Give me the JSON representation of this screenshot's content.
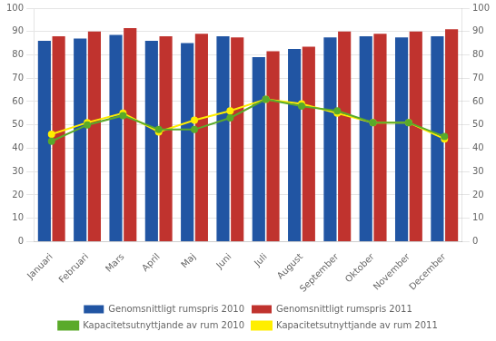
{
  "chart_data": {
    "type": "bar",
    "categories": [
      "Januari",
      "Februari",
      "Mars",
      "April",
      "Maj",
      "Juni",
      "Juli",
      "August",
      "September",
      "Oktober",
      "November",
      "December"
    ],
    "series": [
      {
        "name": "Genomsnittligt rumspris 2010",
        "type": "bar",
        "color": "#2155A3",
        "values": [
          86,
          87,
          88.5,
          86,
          85,
          88,
          79,
          82.5,
          87.5,
          88,
          87.5,
          88
        ]
      },
      {
        "name": "Genomsnittligt rumspris 2011",
        "type": "bar",
        "color": "#C0332E",
        "values": [
          88,
          90,
          91.5,
          88,
          89,
          87.5,
          81.5,
          83.5,
          90,
          89,
          90,
          91
        ]
      },
      {
        "name": "Kapacitetsutnyttjande av rum 2010",
        "type": "line",
        "axis": "y2",
        "marker": "circle",
        "color": "#5AAA2A",
        "values": [
          43,
          50,
          54,
          48,
          48,
          53,
          61,
          58,
          56,
          51,
          51,
          45
        ]
      },
      {
        "name": "Kapacitetsutnyttjande av rum 2011",
        "type": "line",
        "axis": "y2",
        "marker": "circle",
        "color": "#FFEE00",
        "values": [
          46,
          51,
          55,
          47,
          52,
          56,
          61,
          59,
          55,
          51,
          51,
          44
        ]
      }
    ],
    "ylim": [
      0,
      100
    ],
    "yticks": [
      0,
      10,
      20,
      30,
      40,
      50,
      60,
      70,
      80,
      90,
      100
    ],
    "y2lim": [
      0,
      100
    ],
    "y2ticks": [
      0,
      10,
      20,
      30,
      40,
      50,
      60,
      70,
      80,
      90,
      100
    ],
    "grid": true,
    "legend": "bottom"
  }
}
